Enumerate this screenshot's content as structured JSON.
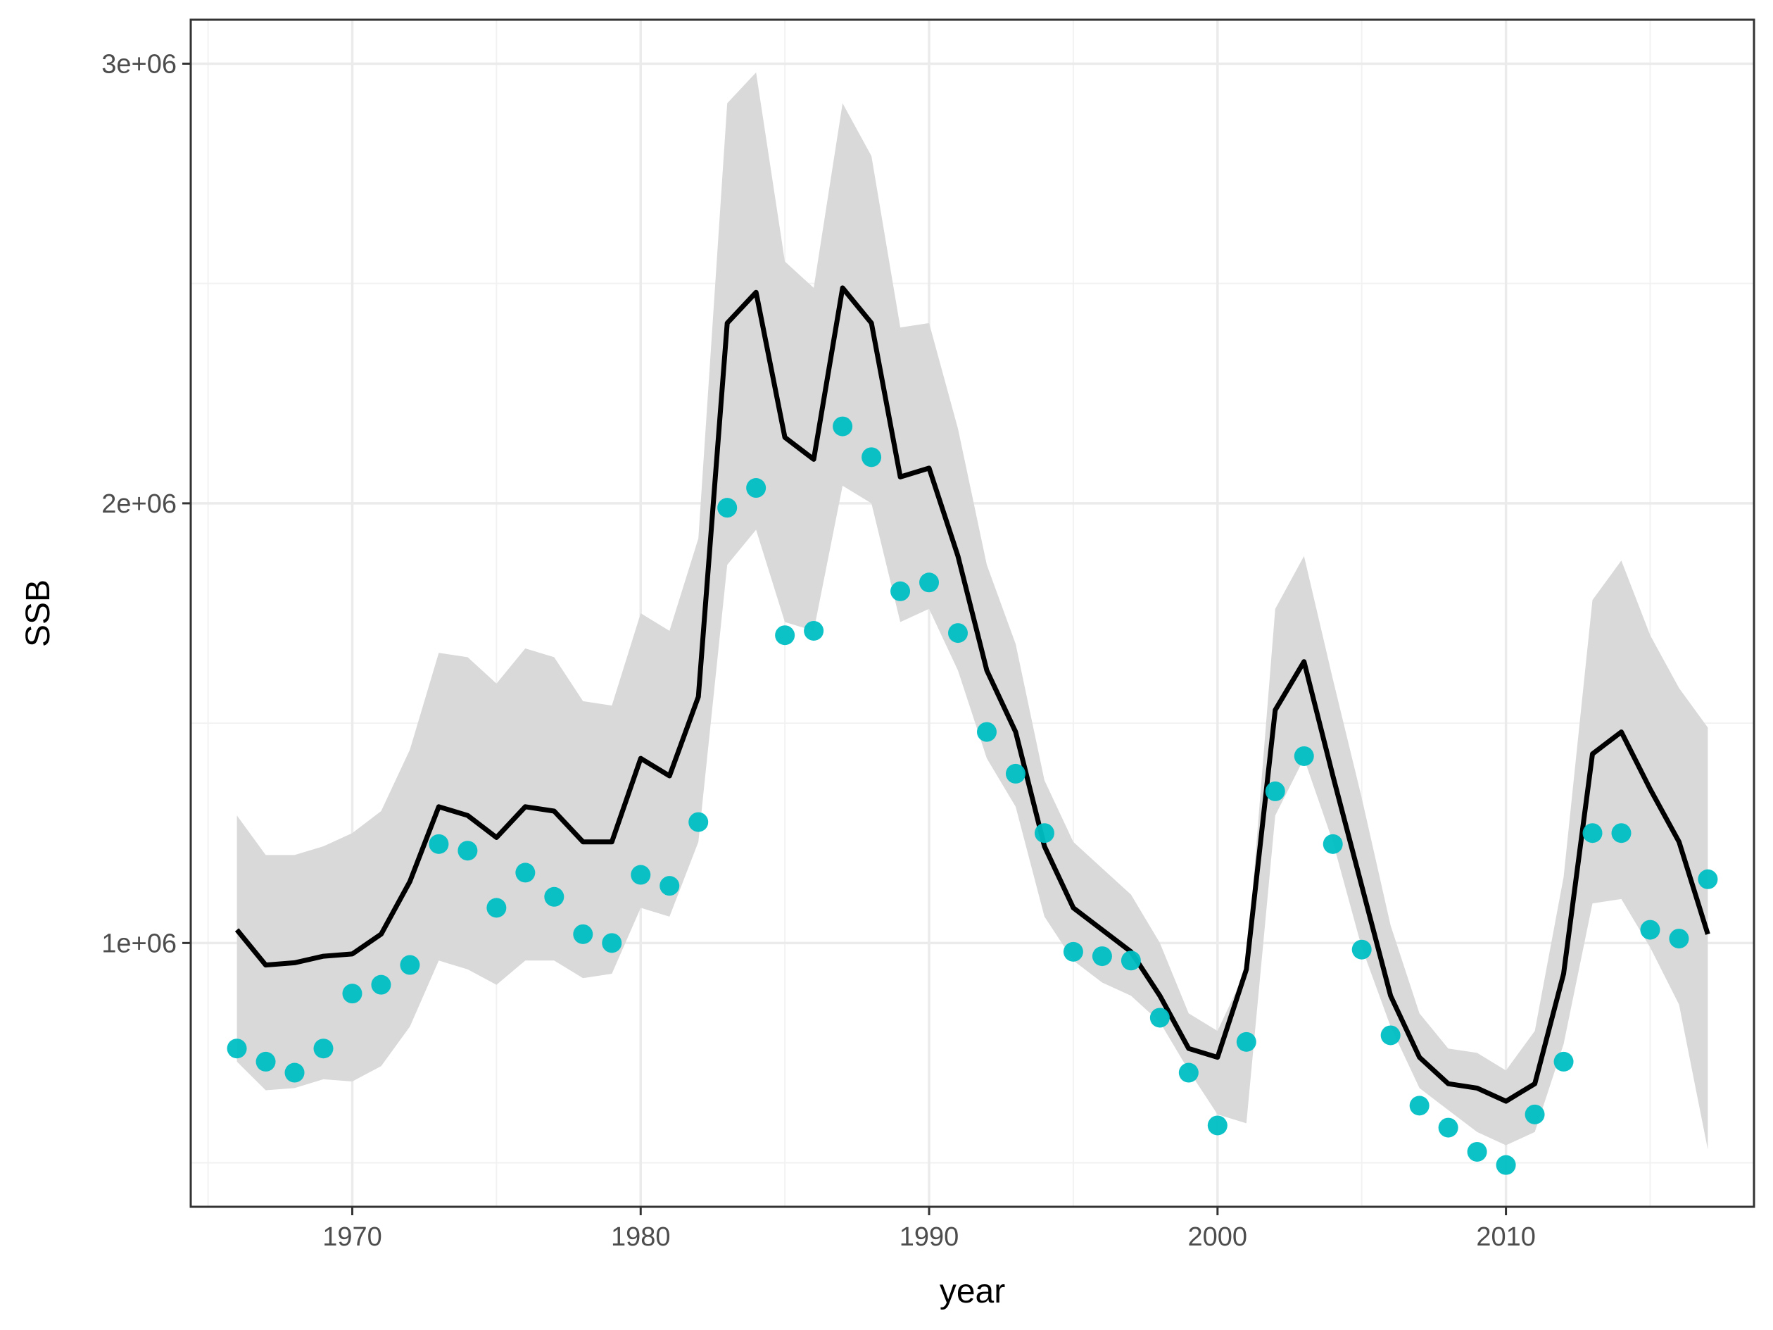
{
  "chart_data": {
    "type": "line",
    "title": "",
    "xlabel": "year",
    "ylabel": "SSB",
    "xlim": [
      1964.4,
      2018.6
    ],
    "ylim": [
      400000,
      3100000
    ],
    "x_ticks": [
      1970,
      1980,
      1990,
      2000,
      2010
    ],
    "x_tick_labels": [
      "1970",
      "1980",
      "1990",
      "2000",
      "2010"
    ],
    "y_ticks": [
      1000000,
      2000000,
      3000000
    ],
    "y_tick_labels": [
      "1e+06",
      "2e+06",
      "3e+06"
    ],
    "y_minor_ticks": [
      500000,
      1500000,
      2500000
    ],
    "x_minor_ticks": [
      1965,
      1975,
      1985,
      1995,
      2005,
      2015
    ],
    "grid": true,
    "theme": "bw",
    "colors": {
      "line": "#000000",
      "points": "#00BFC4",
      "ribbon": "#d9d9d9",
      "grid_major": "#ebebeb",
      "grid_minor": "#f2f2f2",
      "panel_border": "#333333"
    },
    "years": [
      1966,
      1967,
      1968,
      1969,
      1970,
      1971,
      1972,
      1973,
      1974,
      1975,
      1976,
      1977,
      1978,
      1979,
      1980,
      1981,
      1982,
      1983,
      1984,
      1985,
      1986,
      1987,
      1988,
      1989,
      1990,
      1991,
      1992,
      1993,
      1994,
      1995,
      1996,
      1997,
      1998,
      1999,
      2000,
      2001,
      2002,
      2003,
      2004,
      2005,
      2006,
      2007,
      2008,
      2009,
      2010,
      2011,
      2012,
      2013,
      2014,
      2015,
      2016,
      2017
    ],
    "series": [
      {
        "type": "ribbon",
        "lower": [
          730000,
          665000,
          670000,
          690000,
          685000,
          720000,
          810000,
          960000,
          940000,
          905000,
          960000,
          960000,
          920000,
          930000,
          1080000,
          1060000,
          1230000,
          1860000,
          1940000,
          1730000,
          1710000,
          2040000,
          2000000,
          1730000,
          1760000,
          1620000,
          1420000,
          1310000,
          1060000,
          960000,
          910000,
          880000,
          820000,
          710000,
          610000,
          590000,
          1290000,
          1420000,
          1230000,
          990000,
          810000,
          670000,
          620000,
          570000,
          540000,
          570000,
          770000,
          1090000,
          1100000,
          990000,
          860000,
          530000
        ],
        "upper": [
          1290000,
          1200000,
          1200000,
          1220000,
          1250000,
          1300000,
          1440000,
          1660000,
          1650000,
          1590000,
          1670000,
          1650000,
          1550000,
          1540000,
          1750000,
          1710000,
          1920000,
          2910000,
          2980000,
          2550000,
          2490000,
          2910000,
          2790000,
          2400000,
          2410000,
          2170000,
          1860000,
          1680000,
          1370000,
          1230000,
          1170000,
          1110000,
          1000000,
          840000,
          800000,
          940000,
          1760000,
          1880000,
          1600000,
          1330000,
          1040000,
          840000,
          760000,
          750000,
          710000,
          800000,
          1150000,
          1780000,
          1870000,
          1700000,
          1580000,
          1490000
        ]
      },
      {
        "type": "line",
        "values": [
          1030000,
          950000,
          955000,
          970000,
          975000,
          1020000,
          1140000,
          1310000,
          1290000,
          1240000,
          1310000,
          1300000,
          1230000,
          1230000,
          1420000,
          1380000,
          1560000,
          2410000,
          2480000,
          2150000,
          2100000,
          2490000,
          2410000,
          2060000,
          2080000,
          1880000,
          1620000,
          1480000,
          1220000,
          1080000,
          1030000,
          980000,
          880000,
          760000,
          740000,
          940000,
          1530000,
          1640000,
          1380000,
          1130000,
          880000,
          740000,
          680000,
          670000,
          640000,
          680000,
          930000,
          1430000,
          1480000,
          1350000,
          1230000,
          1020000
        ]
      },
      {
        "type": "scatter",
        "values": [
          760000,
          730000,
          705000,
          760000,
          885000,
          905000,
          950000,
          1225000,
          1210000,
          1080000,
          1160000,
          1105000,
          1020000,
          1000000,
          1155000,
          1130000,
          1275000,
          1990000,
          2035000,
          1700000,
          1710000,
          2175000,
          2105000,
          1800000,
          1820000,
          1705000,
          1480000,
          1385000,
          1250000,
          980000,
          970000,
          960000,
          830000,
          705000,
          585000,
          775000,
          1345000,
          1425000,
          1225000,
          985000,
          790000,
          630000,
          580000,
          525000,
          495000,
          610000,
          730000,
          1250000,
          1250000,
          1030000,
          1010000,
          1145000
        ]
      }
    ]
  }
}
